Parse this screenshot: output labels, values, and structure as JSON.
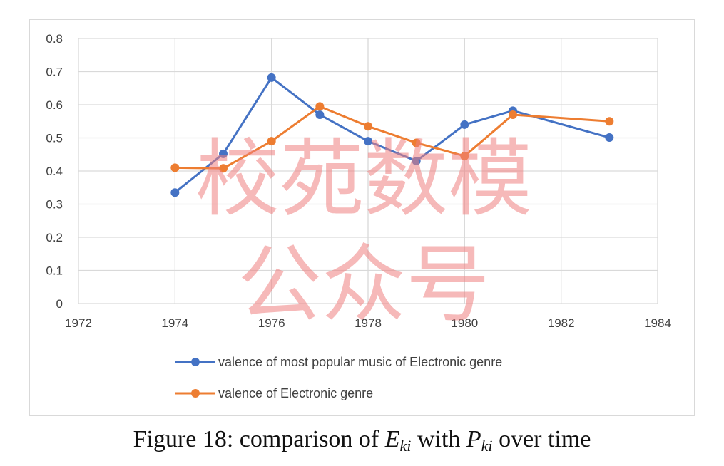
{
  "chart_data": {
    "type": "line",
    "x_ticks": [
      "1972",
      "1974",
      "1976",
      "1978",
      "1980",
      "1982",
      "1984"
    ],
    "y_ticks": [
      "0",
      "0.1",
      "0.2",
      "0.3",
      "0.4",
      "0.5",
      "0.6",
      "0.7",
      "0.8"
    ],
    "xlim": [
      1972,
      1984
    ],
    "ylim": [
      0,
      0.8
    ],
    "grid": true,
    "legend_position": "bottom",
    "series": [
      {
        "name": "valence of most popular music of Electronic genre",
        "color": "#4472C4",
        "x": [
          1974,
          1975,
          1976,
          1977,
          1978,
          1979,
          1980,
          1981,
          1983
        ],
        "y": [
          0.335,
          0.452,
          0.682,
          0.57,
          0.49,
          0.43,
          0.54,
          0.582,
          0.501
        ]
      },
      {
        "name": "valence of Electronic genre",
        "color": "#ED7D31",
        "x": [
          1974,
          1975,
          1976,
          1977,
          1978,
          1979,
          1980,
          1981,
          1983
        ],
        "y": [
          0.41,
          0.408,
          0.49,
          0.595,
          0.535,
          0.485,
          0.445,
          0.57,
          0.55
        ]
      }
    ]
  },
  "watermark": {
    "line1": "校苑数模",
    "line2": "公众号"
  },
  "caption": {
    "prefix": "Figure 18: comparison of ",
    "e_symbol": "E",
    "e_sub": "ki",
    "middle": " with ",
    "p_symbol": "P",
    "p_sub": "ki",
    "suffix": " over time"
  }
}
